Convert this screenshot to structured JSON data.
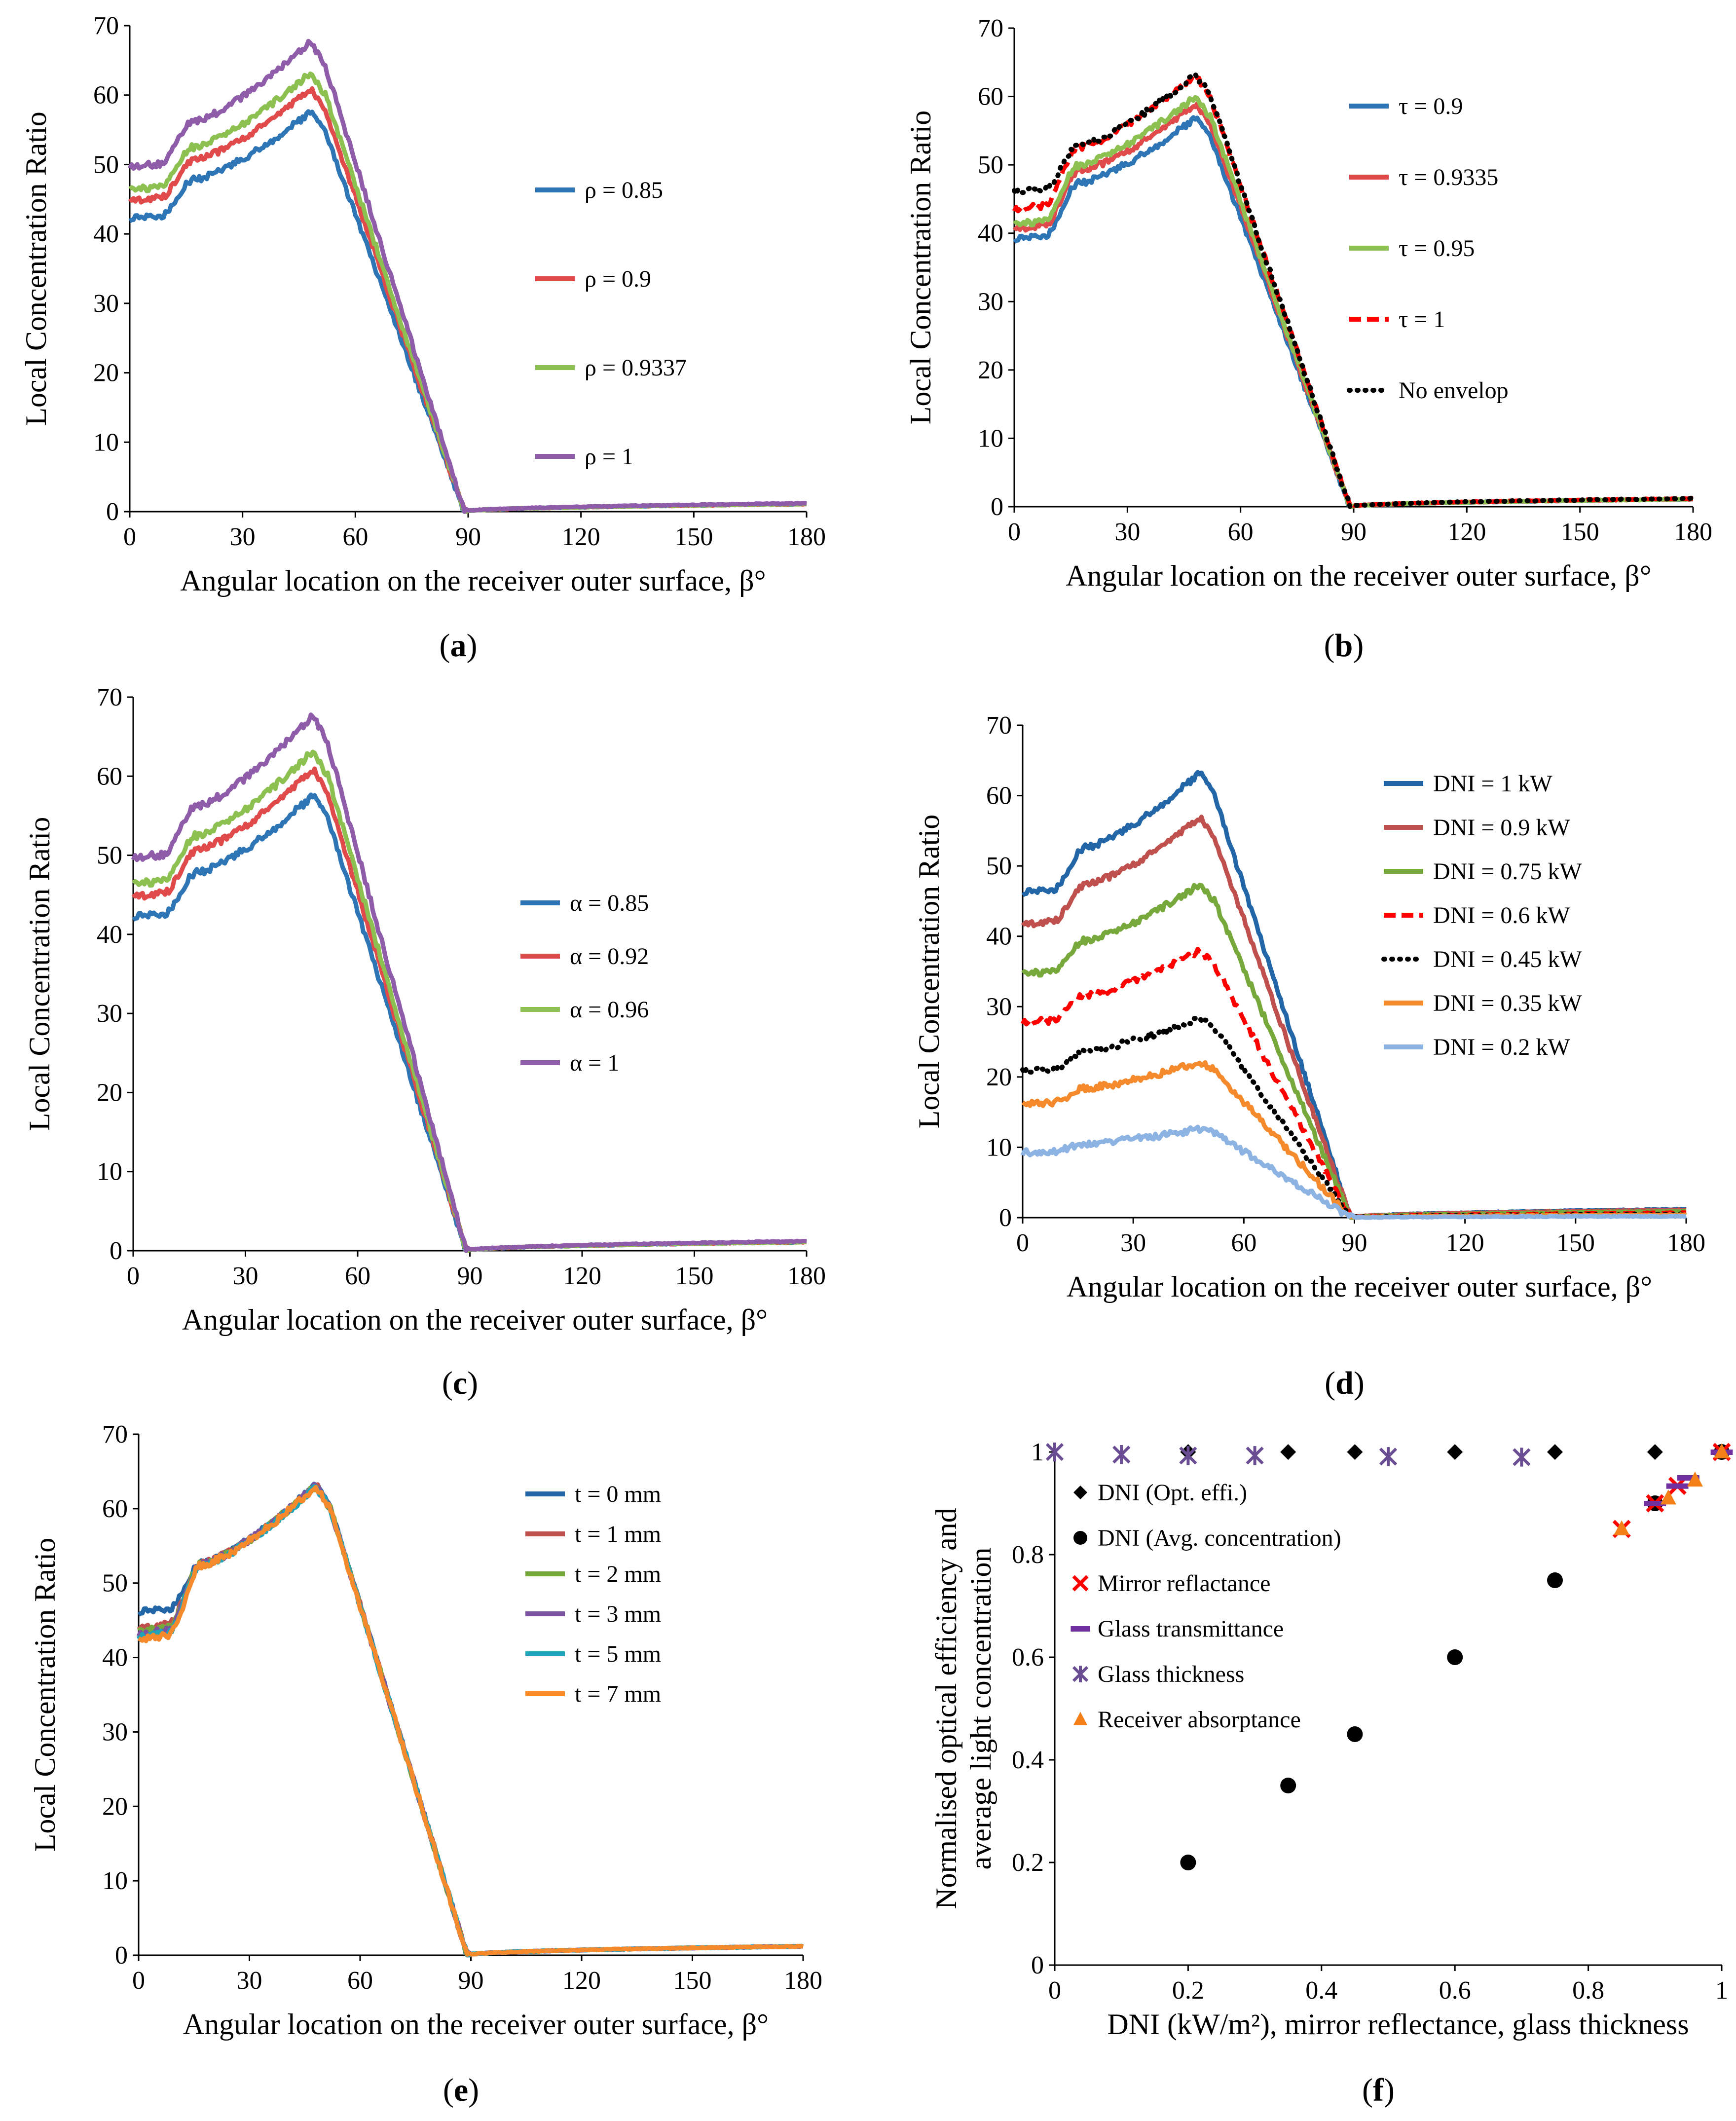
{
  "figure": {
    "common": {
      "xlabel": "Angular location on the receiver outer surface, β°",
      "ylabel": "Local Concentration Ratio"
    },
    "panels": [
      {
        "id": "a",
        "caption_letter": "a"
      },
      {
        "id": "b",
        "caption_letter": "b"
      },
      {
        "id": "c",
        "caption_letter": "c"
      },
      {
        "id": "d",
        "caption_letter": "d"
      },
      {
        "id": "e",
        "caption_letter": "e"
      },
      {
        "id": "f",
        "caption_letter": "f"
      }
    ]
  },
  "chart_data": [
    {
      "id": "a",
      "type": "line",
      "xlabel": "Angular location on the receiver outer surface, β°",
      "ylabel": "Local Concentration Ratio",
      "xlim": [
        0,
        180
      ],
      "ylim": [
        0,
        70
      ],
      "xticks": [
        0,
        30,
        60,
        90,
        120,
        150,
        180
      ],
      "yticks": [
        0,
        10,
        20,
        30,
        40,
        50,
        60,
        70
      ],
      "legend_position": "center-right",
      "series": [
        {
          "name": "ρ = 0.85",
          "color": "#2e75b6",
          "dash": "solid",
          "profile": {
            "start": 42.3,
            "step": 47.8,
            "peak": 57.5,
            "end": 1.1
          }
        },
        {
          "name": "ρ = 0.9",
          "color": "#e04a4a",
          "dash": "solid",
          "profile": {
            "start": 44.8,
            "step": 50.6,
            "peak": 60.9,
            "end": 1.1
          }
        },
        {
          "name": "ρ = 0.9337",
          "color": "#8cc152",
          "dash": "solid",
          "profile": {
            "start": 46.4,
            "step": 52.5,
            "peak": 63.2,
            "end": 1.1
          }
        },
        {
          "name": "ρ = 1",
          "color": "#8e5ca9",
          "dash": "solid",
          "profile": {
            "start": 49.7,
            "step": 56.2,
            "peak": 67.6,
            "end": 1.2
          }
        }
      ]
    },
    {
      "id": "b",
      "type": "line",
      "xlabel": "Angular location on the receiver outer surface, β°",
      "ylabel": "Local Concentration Ratio",
      "xlim": [
        0,
        180
      ],
      "ylim": [
        0,
        70
      ],
      "xticks": [
        0,
        30,
        60,
        90,
        120,
        150,
        180
      ],
      "yticks": [
        0,
        10,
        20,
        30,
        40,
        50,
        60,
        70
      ],
      "legend_position": "top-right",
      "series": [
        {
          "name": "τ = 0.9",
          "color": "#2e75b6",
          "dash": "solid",
          "profile": {
            "start": 39.2,
            "step": 47.3,
            "peak": 56.8,
            "end": 1.1
          }
        },
        {
          "name": "τ = 0.9335",
          "color": "#e04a4a",
          "dash": "solid",
          "profile": {
            "start": 40.6,
            "step": 49.0,
            "peak": 58.9,
            "end": 1.1
          }
        },
        {
          "name": "τ = 0.95",
          "color": "#8cc152",
          "dash": "solid",
          "profile": {
            "start": 41.3,
            "step": 49.9,
            "peak": 60.0,
            "end": 1.1
          }
        },
        {
          "name": "τ = 1",
          "color": "#ff0000",
          "dash": "dashed",
          "profile": {
            "start": 43.5,
            "step": 52.5,
            "peak": 63.1,
            "end": 1.2
          }
        },
        {
          "name": "No envelop",
          "color": "#000000",
          "dash": "dotted",
          "profile": {
            "start": 46.0,
            "step": 52.8,
            "peak": 63.3,
            "end": 1.2
          }
        }
      ]
    },
    {
      "id": "c",
      "type": "line",
      "xlabel": "Angular location on the receiver outer surface, β°",
      "ylabel": "Local Concentration Ratio",
      "xlim": [
        0,
        180
      ],
      "ylim": [
        0,
        70
      ],
      "xticks": [
        0,
        30,
        60,
        90,
        120,
        150,
        180
      ],
      "yticks": [
        0,
        10,
        20,
        30,
        40,
        50,
        60,
        70
      ],
      "legend_position": "center-right",
      "series": [
        {
          "name": "α = 0.85",
          "color": "#2e75b6",
          "dash": "solid",
          "profile": {
            "start": 42.3,
            "step": 47.8,
            "peak": 57.5,
            "end": 1.1
          }
        },
        {
          "name": "α = 0.92",
          "color": "#e04a4a",
          "dash": "solid",
          "profile": {
            "start": 44.8,
            "step": 50.6,
            "peak": 60.9,
            "end": 1.1
          }
        },
        {
          "name": "α = 0.96",
          "color": "#8cc152",
          "dash": "solid",
          "profile": {
            "start": 46.4,
            "step": 52.5,
            "peak": 63.2,
            "end": 1.1
          }
        },
        {
          "name": "α = 1",
          "color": "#8e5ca9",
          "dash": "solid",
          "profile": {
            "start": 49.7,
            "step": 56.2,
            "peak": 67.6,
            "end": 1.2
          }
        }
      ]
    },
    {
      "id": "d",
      "type": "line",
      "xlabel": "Angular location on the receiver outer surface, β°",
      "ylabel": "Local Concentration Ratio",
      "xlim": [
        0,
        180
      ],
      "ylim": [
        0,
        70
      ],
      "xticks": [
        0,
        30,
        60,
        90,
        120,
        150,
        180
      ],
      "yticks": [
        0,
        10,
        20,
        30,
        40,
        50,
        60,
        70
      ],
      "legend_position": "top-right",
      "series": [
        {
          "name": "DNI = 1 kW",
          "color": "#2266a8",
          "dash": "solid",
          "profile": {
            "start": 46.3,
            "step": 52.6,
            "peak": 63.2,
            "end": 1.2
          }
        },
        {
          "name": "DNI = 0.9 kW",
          "color": "#c0504d",
          "dash": "solid",
          "profile": {
            "start": 41.7,
            "step": 47.3,
            "peak": 56.9,
            "end": 1.1
          }
        },
        {
          "name": "DNI = 0.75 kW",
          "color": "#77a83c",
          "dash": "solid",
          "profile": {
            "start": 34.7,
            "step": 39.4,
            "peak": 47.4,
            "end": 0.9
          }
        },
        {
          "name": "DNI = 0.6 kW",
          "color": "#ff0000",
          "dash": "dashed",
          "profile": {
            "start": 27.8,
            "step": 31.6,
            "peak": 37.9,
            "end": 0.7
          }
        },
        {
          "name": "DNI = 0.45 kW",
          "color": "#000000",
          "dash": "dotted",
          "profile": {
            "start": 20.8,
            "step": 23.7,
            "peak": 28.4,
            "end": 0.5
          }
        },
        {
          "name": "DNI = 0.35 kW",
          "color": "#f58a2c",
          "dash": "solid",
          "profile": {
            "start": 16.2,
            "step": 18.4,
            "peak": 22.1,
            "end": 0.4
          }
        },
        {
          "name": "DNI = 0.2 kW",
          "color": "#8db3e2",
          "dash": "solid",
          "profile": {
            "start": 9.3,
            "step": 10.5,
            "peak": 12.6,
            "end": 0.2
          }
        }
      ]
    },
    {
      "id": "e",
      "type": "line",
      "xlabel": "Angular location on the receiver outer surface, β°",
      "ylabel": "Local Concentration Ratio",
      "xlim": [
        0,
        180
      ],
      "ylim": [
        0,
        70
      ],
      "xticks": [
        0,
        30,
        60,
        90,
        120,
        150,
        180
      ],
      "yticks": [
        0,
        10,
        20,
        30,
        40,
        50,
        60,
        70
      ],
      "legend_position": "top-right",
      "series": [
        {
          "name": "t = 0 mm",
          "color": "#2266a8",
          "dash": "solid",
          "profile": {
            "start": 46.2,
            "step": 52.6,
            "peak": 63.2,
            "end": 1.2
          }
        },
        {
          "name": "t = 1 mm",
          "color": "#c0504d",
          "dash": "solid",
          "profile": {
            "start": 43.9,
            "step": 52.6,
            "peak": 63.2,
            "end": 1.2
          }
        },
        {
          "name": "t = 2 mm",
          "color": "#77a83c",
          "dash": "solid",
          "profile": {
            "start": 43.5,
            "step": 52.5,
            "peak": 63.1,
            "end": 1.2
          }
        },
        {
          "name": "t = 3 mm",
          "color": "#7a52a0",
          "dash": "solid",
          "profile": {
            "start": 43.1,
            "step": 52.5,
            "peak": 63.1,
            "end": 1.2
          }
        },
        {
          "name": "t = 5 mm",
          "color": "#1fa3b8",
          "dash": "solid",
          "profile": {
            "start": 42.7,
            "step": 52.4,
            "peak": 63.0,
            "end": 1.2
          }
        },
        {
          "name": "t = 7 mm",
          "color": "#f58a2c",
          "dash": "solid",
          "profile": {
            "start": 42.4,
            "step": 52.4,
            "peak": 63.0,
            "end": 1.2
          }
        }
      ]
    },
    {
      "id": "f",
      "type": "scatter",
      "xlabel": "DNI (kW/m²), mirror reflectance, glass thickness",
      "ylabel": "Normalised optical efficiency and average light concentration",
      "ylabel_lines": [
        "Normalised optical efficiency and",
        "average light concentration"
      ],
      "xlim": [
        0,
        1
      ],
      "ylim": [
        0,
        1
      ],
      "xticks": [
        "0",
        "0.2",
        "0.4",
        "0.6",
        "0.8",
        "1"
      ],
      "xtick_values": [
        0,
        0.2,
        0.4,
        0.6,
        0.8,
        1
      ],
      "yticks": [
        "0",
        "0.2",
        "0.4",
        "0.6",
        "0.8",
        "1"
      ],
      "ytick_values": [
        0,
        0.2,
        0.4,
        0.6,
        0.8,
        1
      ],
      "legend_position": "top-left",
      "series": [
        {
          "name": "DNI (Opt. effi.)",
          "marker": "diamond",
          "color": "#000000",
          "x": [
            0.2,
            0.35,
            0.45,
            0.6,
            0.75,
            0.9,
            1.0
          ],
          "y": [
            1,
            1,
            1,
            1,
            1,
            1,
            1
          ]
        },
        {
          "name": "DNI (Avg. concentration)",
          "marker": "circle",
          "color": "#000000",
          "x": [
            0.2,
            0.35,
            0.45,
            0.6,
            0.75,
            0.9,
            1.0
          ],
          "y": [
            0.2,
            0.35,
            0.45,
            0.6,
            0.75,
            0.9,
            1.0
          ]
        },
        {
          "name": "Mirror reflactance",
          "marker": "x",
          "color": "#ff0000",
          "x": [
            0.85,
            0.9,
            0.9337,
            1.0
          ],
          "y": [
            0.85,
            0.9,
            0.934,
            1.0
          ]
        },
        {
          "name": "Glass transmittance",
          "marker": "dash",
          "color": "#7030a0",
          "x": [
            0.9,
            0.9335,
            0.95,
            1.0
          ],
          "y": [
            0.9,
            0.934,
            0.95,
            1.0
          ]
        },
        {
          "name": "Glass thickness",
          "marker": "asterisk",
          "color": "#6a4c93",
          "x": [
            0,
            0.1,
            0.2,
            0.3,
            0.5,
            0.7
          ],
          "y": [
            1.0,
            0.995,
            0.993,
            0.993,
            0.991,
            0.99
          ]
        },
        {
          "name": "Receiver absorptance",
          "marker": "triangle",
          "color": "#f57f17",
          "x": [
            0.85,
            0.92,
            0.96,
            1.0
          ],
          "y": [
            0.85,
            0.91,
            0.945,
            1.0
          ]
        }
      ]
    }
  ]
}
